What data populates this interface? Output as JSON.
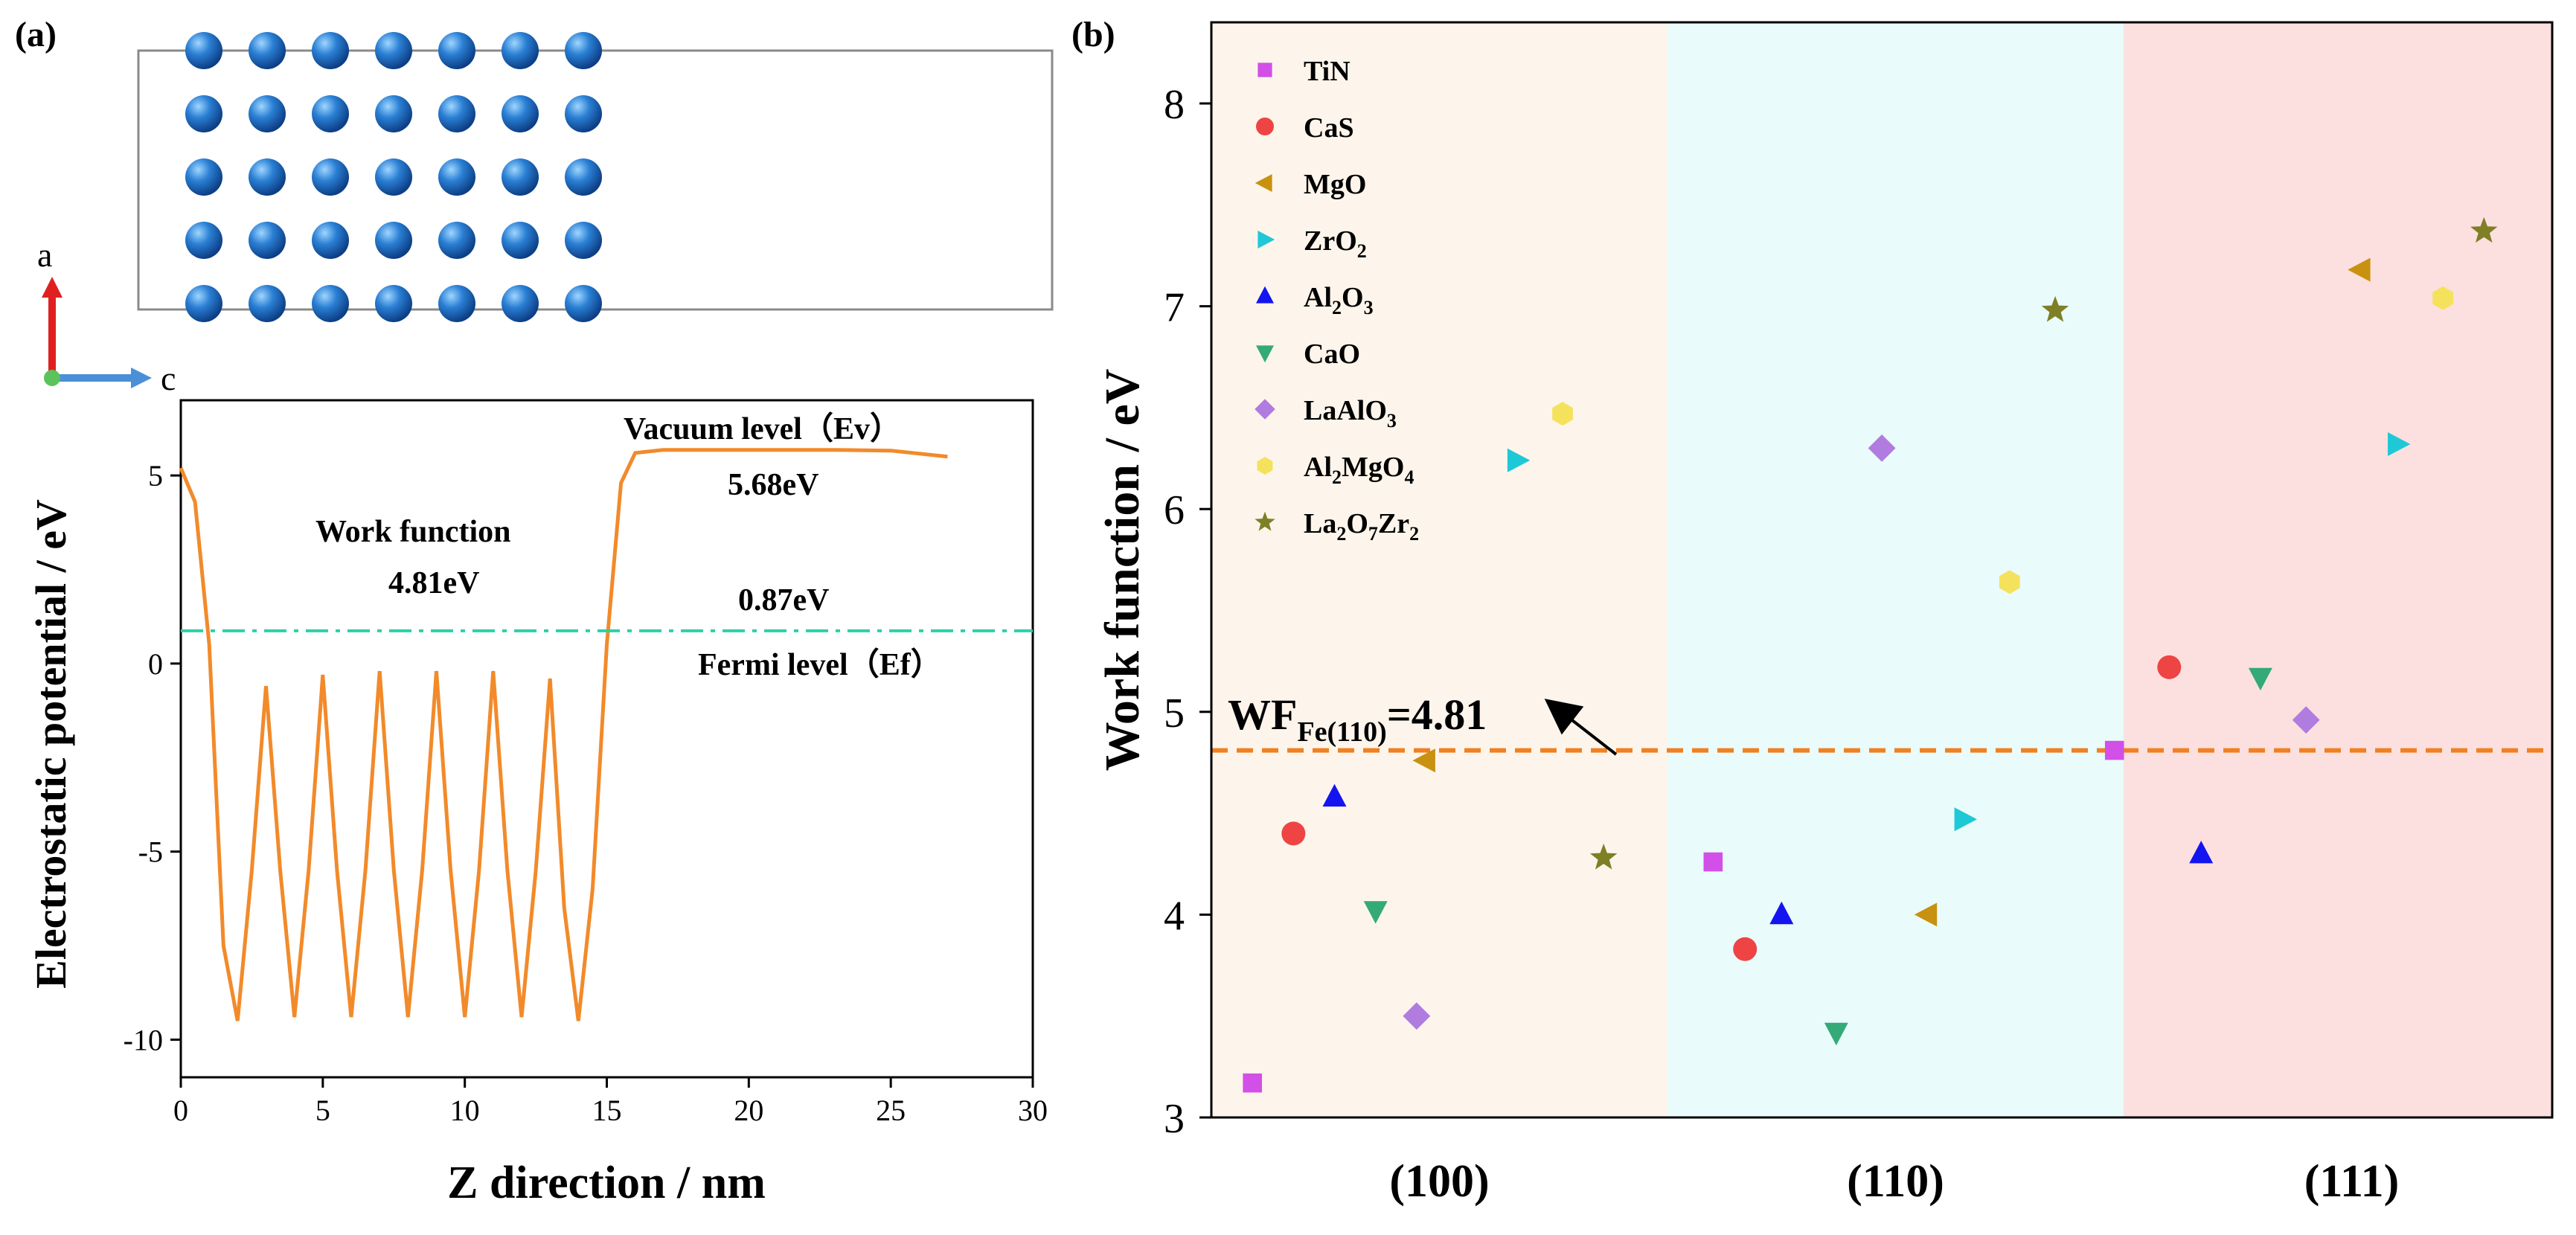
{
  "panel_a": {
    "label": "(a)",
    "axes_labels": {
      "a": "a",
      "c": "c"
    },
    "annotations": {
      "vacuum_label": "Vacuum level（Ev）",
      "vacuum_value": "5.68eV",
      "wf_label": "Work function",
      "wf_value": "4.81eV",
      "fermi_value": "0.87eV",
      "fermi_label": "Fermi level（Ef）"
    },
    "colors": {
      "atom": "#2a7fd4",
      "potential": "#f28a2a",
      "fermi": "#2bd1a6",
      "axis_a": "#e02020",
      "axis_c": "#4a8fd8"
    }
  },
  "panel_b": {
    "label": "(b)",
    "annotation": {
      "prefix": "WF",
      "subscript": "Fe(110)",
      "suffix": "=4.81"
    },
    "colors": {
      "ref_line": "#f08020",
      "region_100": "#fdf5ec",
      "region_110": "#e9fbfb",
      "region_111": "#fce0e0"
    }
  },
  "chart_data": [
    {
      "type": "line",
      "title": "",
      "xlabel": "Z direction / nm",
      "ylabel": "Electrostatic potential / eV",
      "xlim": [
        0,
        30
      ],
      "ylim": [
        -11,
        7
      ],
      "xticks": [
        0,
        5,
        10,
        15,
        20,
        25,
        30
      ],
      "yticks": [
        -10,
        -5,
        0,
        5
      ],
      "x_tick_labels": [
        "0",
        "5",
        "10",
        "15",
        "20",
        "25",
        "30"
      ],
      "y_tick_labels": [
        "-10",
        "-5",
        "0",
        "5"
      ],
      "series": [
        {
          "name": "Electrostatic potential",
          "x": [
            0,
            0.5,
            1,
            1.5,
            2,
            2.5,
            3,
            3.5,
            4,
            4.5,
            5,
            5.5,
            6,
            6.5,
            7,
            7.5,
            8,
            8.5,
            9,
            9.5,
            10,
            10.5,
            11,
            11.5,
            12,
            12.5,
            13,
            13.5,
            14,
            14.5,
            15,
            15.5,
            16,
            17,
            19,
            21,
            23,
            25,
            27
          ],
          "y": [
            5.2,
            4.3,
            0.5,
            -7.5,
            -9.5,
            -5.5,
            -0.6,
            -5.5,
            -9.4,
            -5.5,
            -0.3,
            -5.5,
            -9.4,
            -5.5,
            -0.2,
            -5.5,
            -9.4,
            -5.5,
            -0.2,
            -5.5,
            -9.4,
            -5.5,
            -0.2,
            -5.5,
            -9.4,
            -5.5,
            -0.4,
            -6.5,
            -9.5,
            -6,
            0.5,
            4.8,
            5.6,
            5.68,
            5.68,
            5.68,
            5.68,
            5.66,
            5.5
          ]
        }
      ],
      "reference_lines": [
        {
          "name": "Fermi level",
          "y": 0.87
        }
      ]
    },
    {
      "type": "scatter",
      "title": "",
      "xlabel": "",
      "ylabel": "Work function / eV",
      "ylim": [
        3,
        8.4
      ],
      "yticks": [
        3,
        4,
        5,
        6,
        7,
        8
      ],
      "y_tick_labels": [
        "3",
        "4",
        "5",
        "6",
        "7",
        "8"
      ],
      "categories": [
        "(100)",
        "(110)",
        "(111)"
      ],
      "reference_line": {
        "label": "WF Fe(110)",
        "y": 4.81
      },
      "series": [
        {
          "name": "TiN",
          "legend": [
            "TiN",
            "",
            ""
          ],
          "marker": "square",
          "color": "#d24fe8",
          "points": [
            {
              "x": 0.09,
              "y": 3.17
            },
            {
              "x": 1.1,
              "y": 4.26
            },
            {
              "x": 1.98,
              "y": 4.81
            }
          ]
        },
        {
          "name": "CaS",
          "legend": [
            "CaS",
            "",
            ""
          ],
          "marker": "circle",
          "color": "#ee4444",
          "points": [
            {
              "x": 0.18,
              "y": 4.4
            },
            {
              "x": 1.17,
              "y": 3.83
            },
            {
              "x": 2.1,
              "y": 5.22
            }
          ]
        },
        {
          "name": "MgO",
          "legend": [
            "MgO",
            "",
            ""
          ],
          "marker": "triangle-left",
          "color": "#c8910f",
          "points": [
            {
              "x": 0.47,
              "y": 4.76
            },
            {
              "x": 1.57,
              "y": 4.0
            },
            {
              "x": 2.52,
              "y": 7.18
            }
          ]
        },
        {
          "name": "ZrO2",
          "legend": [
            "ZrO",
            "2",
            ""
          ],
          "marker": "triangle-right",
          "color": "#1fc8d6",
          "points": [
            {
              "x": 0.67,
              "y": 6.24
            },
            {
              "x": 1.65,
              "y": 4.47
            },
            {
              "x": 2.6,
              "y": 6.32
            }
          ]
        },
        {
          "name": "Al2O3",
          "legend": [
            "Al",
            "2",
            "O",
            "3"
          ],
          "marker": "triangle-up",
          "color": "#1414f0",
          "points": [
            {
              "x": 0.27,
              "y": 4.58
            },
            {
              "x": 1.25,
              "y": 4.0
            },
            {
              "x": 2.17,
              "y": 4.3
            }
          ]
        },
        {
          "name": "CaO",
          "legend": [
            "CaO",
            "",
            ""
          ],
          "marker": "triangle-down",
          "color": "#33aa77",
          "points": [
            {
              "x": 0.36,
              "y": 4.02
            },
            {
              "x": 1.37,
              "y": 3.42
            },
            {
              "x": 2.3,
              "y": 5.17
            }
          ]
        },
        {
          "name": "LaAlO3",
          "legend": [
            "LaAlO",
            "3",
            ""
          ],
          "marker": "diamond",
          "color": "#b07ce0",
          "points": [
            {
              "x": 0.45,
              "y": 3.5
            },
            {
              "x": 1.47,
              "y": 6.3
            },
            {
              "x": 2.4,
              "y": 4.96
            }
          ]
        },
        {
          "name": "Al2MgO4",
          "legend": [
            "Al",
            "2",
            "MgO",
            "4"
          ],
          "marker": "hexagon",
          "color": "#f5e25c",
          "points": [
            {
              "x": 0.77,
              "y": 6.47
            },
            {
              "x": 1.75,
              "y": 5.64
            },
            {
              "x": 2.7,
              "y": 7.04
            }
          ]
        },
        {
          "name": "La2O7Zr2",
          "legend": [
            "La",
            "2",
            "O",
            "7",
            "Zr",
            "2"
          ],
          "marker": "star",
          "color": "#7f7f26",
          "points": [
            {
              "x": 0.86,
              "y": 4.28
            },
            {
              "x": 1.85,
              "y": 6.98
            },
            {
              "x": 2.79,
              "y": 7.37
            }
          ]
        }
      ]
    }
  ]
}
